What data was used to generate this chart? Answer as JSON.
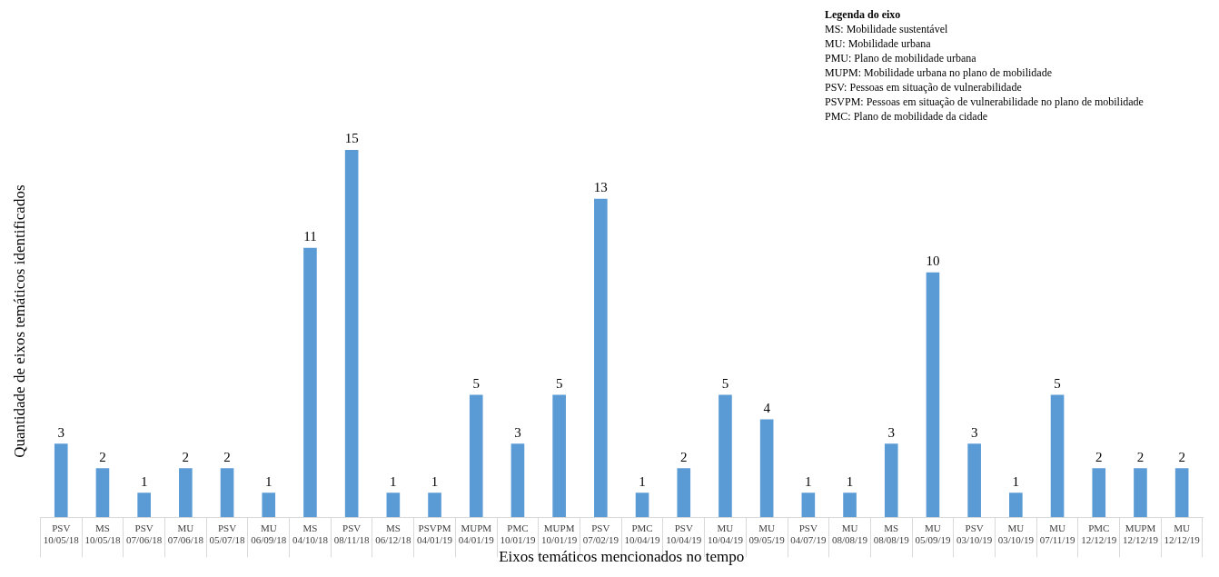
{
  "chart_data": {
    "type": "bar",
    "xlabel": "Eixos temáticos mencionados no tempo",
    "ylabel": "Quantidade de eixos temáticos identificados",
    "legend_title": "Legenda do eixo",
    "annotations": [
      "MS: Mobilidade sustentável",
      "MU: Mobilidade urbana",
      "PMU: Plano de mobilidade urbana",
      "MUPM: Mobilidade urbana no plano de mobilidade",
      "PSV: Pessoas em situação de vulnerabilidade",
      "PSVPM: Pessoas em situação de vulnerabilidade no plano de mobilidade",
      "PMC: Plano de mobilidade da cidade"
    ],
    "categories": [
      "PSV\n10/05/18",
      "MS\n10/05/18",
      "PSV\n07/06/18",
      "MU\n07/06/18",
      "PSV\n05/07/18",
      "MU\n06/09/18",
      "MS\n04/10/18",
      "PSV\n08/11/18",
      "MS\n06/12/18",
      "PSVPM\n04/01/19",
      "MUPM\n04/01/19",
      "PMC\n10/01/19",
      "MUPM\n10/01/19",
      "PSV\n07/02/19",
      "PMC\n10/04/19",
      "PSV\n10/04/19",
      "MU\n10/04/19",
      "MU\n09/05/19",
      "PSV\n04/07/19",
      "MU\n08/08/19",
      "MS\n08/08/19",
      "MU\n05/09/19",
      "PSV\n03/10/19",
      "MU\n03/10/19",
      "MU\n07/11/19",
      "PMC\n12/12/19",
      "MUPM\n12/12/19",
      "MU\n12/12/19"
    ],
    "values": [
      3,
      2,
      1,
      2,
      2,
      1,
      11,
      15,
      1,
      1,
      5,
      3,
      5,
      13,
      1,
      2,
      5,
      4,
      1,
      1,
      3,
      10,
      3,
      1,
      5,
      2,
      2,
      2
    ],
    "color": "#5b9bd5",
    "data_labels": true,
    "grid": false,
    "legend": false
  }
}
